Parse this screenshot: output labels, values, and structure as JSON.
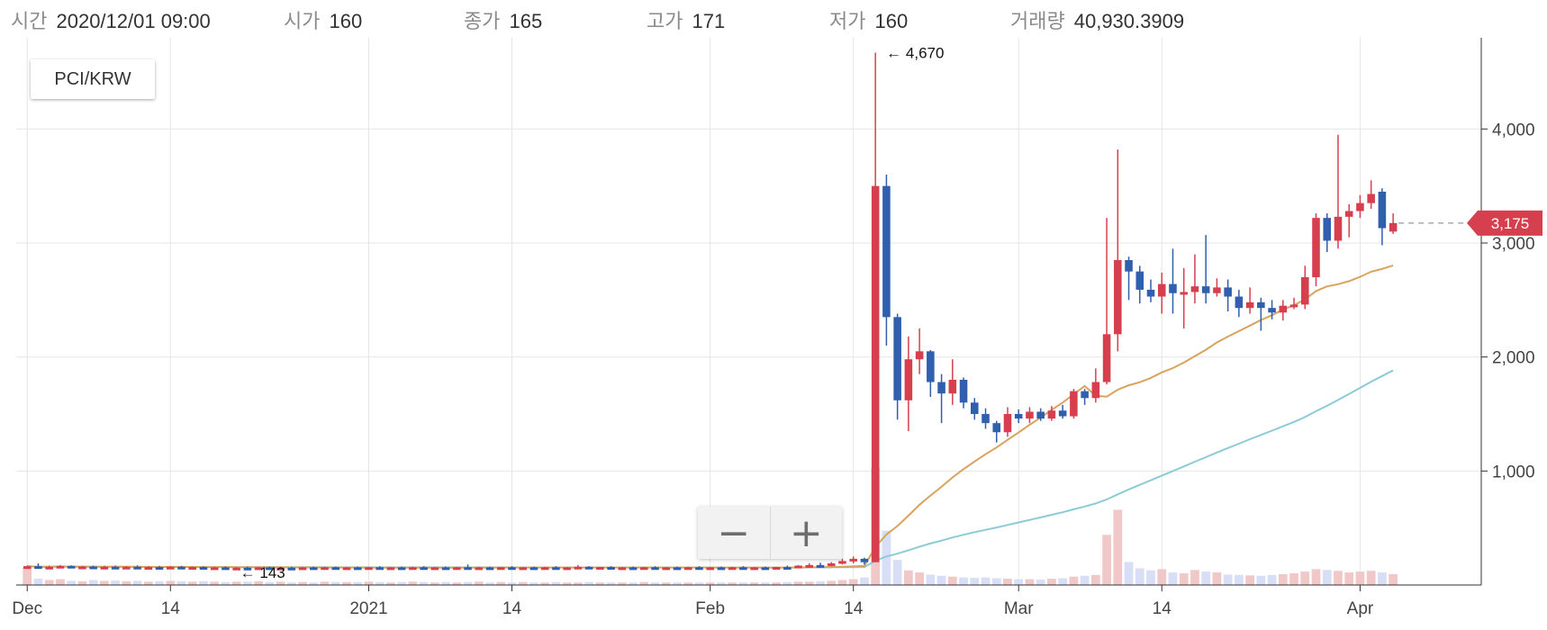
{
  "info": [
    {
      "key": "time",
      "label": "시간",
      "value": "2020/12/01 09:00"
    },
    {
      "key": "open",
      "label": "시가",
      "value": "160"
    },
    {
      "key": "close",
      "label": "종가",
      "value": "165"
    },
    {
      "key": "high",
      "label": "고가",
      "value": "171"
    },
    {
      "key": "low",
      "label": "저가",
      "value": "160"
    },
    {
      "key": "volume",
      "label": "거래량",
      "value": "40,930.3909"
    }
  ],
  "pair": "PCI/KRW",
  "zoom": {
    "out_label": "−",
    "in_label": "+"
  },
  "colors": {
    "up": "#d6404e",
    "down": "#2f5fad",
    "ma_short": "#d9a25e",
    "ma_long": "#8ccbd6",
    "vol_up": "#f1c8c8",
    "vol_down": "#d8def5",
    "grid": "#e6e6e6",
    "axis": "#333333"
  },
  "chart_data": {
    "type": "candlestick",
    "x_axis": {
      "type": "date",
      "range": [
        "2020-11-30",
        "2021-04-12"
      ],
      "tick_labels": [
        "Dec",
        "14",
        "2021",
        "14",
        "Feb",
        "14",
        "Mar",
        "14",
        "Apr"
      ]
    },
    "y_axis": {
      "range": [
        0,
        4800
      ],
      "ticks": [
        1000,
        2000,
        3000,
        4000
      ],
      "tick_labels": [
        "1,000",
        "2,000",
        "3,000",
        "4,000"
      ],
      "position": "right"
    },
    "grid": true,
    "annotations": {
      "max": {
        "label": "← 4,670",
        "value": 4670
      },
      "min": {
        "label": "← 143",
        "value": 143
      }
    },
    "last_price": {
      "label": "3,175",
      "value": 3175
    },
    "candles": [
      [
        "2020-12-01",
        160,
        171,
        160,
        165,
        41
      ],
      [
        "2020-12-02",
        165,
        190,
        150,
        155,
        15
      ],
      [
        "2020-12-03",
        155,
        170,
        150,
        160,
        12
      ],
      [
        "2020-12-04",
        160,
        175,
        152,
        168,
        14
      ],
      [
        "2020-12-05",
        168,
        172,
        150,
        155,
        10
      ],
      [
        "2020-12-06",
        155,
        168,
        150,
        162,
        9
      ],
      [
        "2020-12-07",
        162,
        170,
        150,
        155,
        12
      ],
      [
        "2020-12-08",
        155,
        168,
        150,
        160,
        10
      ],
      [
        "2020-12-09",
        160,
        170,
        148,
        152,
        11
      ],
      [
        "2020-12-10",
        152,
        165,
        148,
        160,
        9
      ],
      [
        "2020-12-11",
        160,
        172,
        150,
        155,
        10
      ],
      [
        "2020-12-12",
        155,
        165,
        148,
        158,
        8
      ],
      [
        "2020-12-13",
        158,
        168,
        150,
        152,
        9
      ],
      [
        "2020-12-14",
        152,
        165,
        148,
        160,
        10
      ],
      [
        "2020-12-15",
        160,
        168,
        148,
        150,
        9
      ],
      [
        "2020-12-16",
        150,
        162,
        145,
        158,
        8
      ],
      [
        "2020-12-17",
        158,
        165,
        145,
        150,
        9
      ],
      [
        "2020-12-18",
        150,
        160,
        145,
        155,
        8
      ],
      [
        "2020-12-19",
        155,
        162,
        145,
        148,
        7
      ],
      [
        "2020-12-20",
        148,
        158,
        143,
        152,
        8
      ],
      [
        "2020-12-21",
        152,
        160,
        145,
        150,
        8
      ],
      [
        "2020-12-22",
        150,
        158,
        143,
        155,
        9
      ],
      [
        "2020-12-23",
        155,
        162,
        145,
        148,
        7
      ],
      [
        "2020-12-24",
        148,
        158,
        143,
        152,
        8
      ],
      [
        "2020-12-25",
        152,
        160,
        145,
        150,
        6
      ],
      [
        "2020-12-26",
        150,
        158,
        145,
        155,
        7
      ],
      [
        "2020-12-27",
        155,
        162,
        148,
        150,
        6
      ],
      [
        "2020-12-28",
        150,
        160,
        145,
        156,
        8
      ],
      [
        "2020-12-29",
        156,
        162,
        148,
        150,
        7
      ],
      [
        "2020-12-30",
        150,
        158,
        145,
        155,
        7
      ],
      [
        "2020-12-31",
        155,
        162,
        148,
        152,
        7
      ],
      [
        "2021-01-01",
        152,
        160,
        145,
        156,
        8
      ],
      [
        "2021-01-02",
        156,
        165,
        148,
        150,
        7
      ],
      [
        "2021-01-03",
        150,
        158,
        145,
        155,
        6
      ],
      [
        "2021-01-04",
        155,
        162,
        148,
        150,
        7
      ],
      [
        "2021-01-05",
        150,
        160,
        145,
        156,
        8
      ],
      [
        "2021-01-06",
        156,
        165,
        148,
        150,
        7
      ],
      [
        "2021-01-07",
        150,
        158,
        145,
        155,
        6
      ],
      [
        "2021-01-08",
        155,
        162,
        148,
        150,
        7
      ],
      [
        "2021-01-09",
        150,
        160,
        145,
        156,
        6
      ],
      [
        "2021-01-10",
        156,
        180,
        148,
        150,
        7
      ],
      [
        "2021-01-11",
        150,
        160,
        145,
        155,
        8
      ],
      [
        "2021-01-12",
        155,
        162,
        148,
        150,
        6
      ],
      [
        "2021-01-13",
        150,
        158,
        145,
        156,
        7
      ],
      [
        "2021-01-14",
        156,
        165,
        148,
        150,
        6
      ],
      [
        "2021-01-15",
        150,
        158,
        145,
        155,
        7
      ],
      [
        "2021-01-16",
        155,
        162,
        148,
        150,
        6
      ],
      [
        "2021-01-17",
        150,
        160,
        145,
        156,
        6
      ],
      [
        "2021-01-18",
        156,
        165,
        148,
        150,
        7
      ],
      [
        "2021-01-19",
        150,
        158,
        145,
        155,
        6
      ],
      [
        "2021-01-20",
        155,
        175,
        148,
        160,
        6
      ],
      [
        "2021-01-21",
        160,
        165,
        148,
        152,
        7
      ],
      [
        "2021-01-22",
        152,
        160,
        145,
        158,
        6
      ],
      [
        "2021-01-23",
        158,
        165,
        148,
        150,
        6
      ],
      [
        "2021-01-24",
        150,
        158,
        145,
        155,
        6
      ],
      [
        "2021-01-25",
        155,
        162,
        148,
        150,
        6
      ],
      [
        "2021-01-26",
        150,
        160,
        145,
        156,
        7
      ],
      [
        "2021-01-27",
        156,
        165,
        148,
        150,
        6
      ],
      [
        "2021-01-28",
        150,
        158,
        145,
        155,
        6
      ],
      [
        "2021-01-29",
        155,
        162,
        148,
        150,
        6
      ],
      [
        "2021-01-30",
        150,
        160,
        145,
        156,
        6
      ],
      [
        "2021-01-31",
        156,
        165,
        148,
        150,
        6
      ],
      [
        "2021-02-01",
        150,
        158,
        145,
        155,
        6
      ],
      [
        "2021-02-02",
        155,
        162,
        148,
        150,
        6
      ],
      [
        "2021-02-03",
        150,
        160,
        145,
        156,
        6
      ],
      [
        "2021-02-04",
        156,
        165,
        148,
        150,
        6
      ],
      [
        "2021-02-05",
        150,
        158,
        145,
        155,
        6
      ],
      [
        "2021-02-06",
        155,
        162,
        148,
        150,
        6
      ],
      [
        "2021-02-07",
        150,
        160,
        145,
        158,
        6
      ],
      [
        "2021-02-08",
        158,
        170,
        150,
        155,
        7
      ],
      [
        "2021-02-09",
        155,
        175,
        150,
        170,
        8
      ],
      [
        "2021-02-10",
        170,
        190,
        160,
        175,
        8
      ],
      [
        "2021-02-11",
        175,
        195,
        165,
        170,
        9
      ],
      [
        "2021-02-12",
        170,
        200,
        165,
        190,
        10
      ],
      [
        "2021-02-13",
        190,
        230,
        180,
        210,
        12
      ],
      [
        "2021-02-14",
        210,
        250,
        190,
        230,
        14
      ],
      [
        "2021-02-15",
        230,
        240,
        180,
        200,
        18
      ],
      [
        "2021-02-16",
        200,
        4670,
        200,
        3500,
        280
      ],
      [
        "2021-02-17",
        3500,
        3600,
        2100,
        2350,
        130
      ],
      [
        "2021-02-18",
        2350,
        2380,
        1450,
        1620,
        60
      ],
      [
        "2021-02-19",
        1620,
        2180,
        1350,
        1980,
        35
      ],
      [
        "2021-02-20",
        1980,
        2250,
        1850,
        2050,
        30
      ],
      [
        "2021-02-21",
        2050,
        2060,
        1650,
        1780,
        25
      ],
      [
        "2021-02-22",
        1780,
        1850,
        1420,
        1680,
        22
      ],
      [
        "2021-02-23",
        1680,
        1980,
        1580,
        1800,
        20
      ],
      [
        "2021-02-24",
        1800,
        1820,
        1550,
        1600,
        18
      ],
      [
        "2021-02-25",
        1600,
        1640,
        1450,
        1500,
        17
      ],
      [
        "2021-02-26",
        1500,
        1550,
        1370,
        1420,
        18
      ],
      [
        "2021-02-27",
        1420,
        1440,
        1250,
        1340,
        16
      ],
      [
        "2021-02-28",
        1340,
        1560,
        1300,
        1500,
        15
      ],
      [
        "2021-03-01",
        1500,
        1540,
        1420,
        1460,
        14
      ],
      [
        "2021-03-02",
        1460,
        1560,
        1420,
        1520,
        14
      ],
      [
        "2021-03-03",
        1520,
        1550,
        1440,
        1460,
        13
      ],
      [
        "2021-03-04",
        1460,
        1570,
        1440,
        1530,
        15
      ],
      [
        "2021-03-05",
        1530,
        1580,
        1460,
        1480,
        16
      ],
      [
        "2021-03-06",
        1480,
        1720,
        1460,
        1700,
        20
      ],
      [
        "2021-03-07",
        1700,
        1720,
        1580,
        1640,
        22
      ],
      [
        "2021-03-08",
        1640,
        1900,
        1600,
        1780,
        24
      ],
      [
        "2021-03-09",
        1780,
        3220,
        1760,
        2200,
        120
      ],
      [
        "2021-03-10",
        2200,
        3820,
        2050,
        2850,
        180
      ],
      [
        "2021-03-11",
        2850,
        2880,
        2500,
        2750,
        55
      ],
      [
        "2021-03-12",
        2750,
        2800,
        2470,
        2590,
        40
      ],
      [
        "2021-03-13",
        2590,
        2680,
        2480,
        2530,
        35
      ],
      [
        "2021-03-14",
        2530,
        2740,
        2380,
        2640,
        38
      ],
      [
        "2021-03-15",
        2640,
        2950,
        2380,
        2560,
        30
      ],
      [
        "2021-03-16",
        2560,
        2780,
        2250,
        2570,
        28
      ],
      [
        "2021-03-17",
        2570,
        2900,
        2470,
        2620,
        36
      ],
      [
        "2021-03-18",
        2620,
        3070,
        2470,
        2560,
        32
      ],
      [
        "2021-03-19",
        2560,
        2690,
        2530,
        2610,
        30
      ],
      [
        "2021-03-20",
        2610,
        2680,
        2400,
        2530,
        25
      ],
      [
        "2021-03-21",
        2530,
        2590,
        2350,
        2430,
        24
      ],
      [
        "2021-03-22",
        2430,
        2610,
        2380,
        2480,
        23
      ],
      [
        "2021-03-23",
        2480,
        2520,
        2230,
        2430,
        22
      ],
      [
        "2021-03-24",
        2430,
        2500,
        2330,
        2390,
        24
      ],
      [
        "2021-03-25",
        2390,
        2500,
        2320,
        2450,
        26
      ],
      [
        "2021-03-26",
        2450,
        2520,
        2420,
        2460,
        28
      ],
      [
        "2021-03-27",
        2460,
        2800,
        2420,
        2700,
        32
      ],
      [
        "2021-03-28",
        2700,
        3260,
        2620,
        3220,
        38
      ],
      [
        "2021-03-29",
        3220,
        3260,
        2920,
        3020,
        36
      ],
      [
        "2021-03-30",
        3020,
        3950,
        2950,
        3230,
        34
      ],
      [
        "2021-03-31",
        3230,
        3340,
        3050,
        3280,
        30
      ],
      [
        "2021-04-01",
        3280,
        3420,
        3220,
        3350,
        32
      ],
      [
        "2021-04-02",
        3350,
        3550,
        3300,
        3430,
        34
      ],
      [
        "2021-04-03",
        3450,
        3480,
        2980,
        3130,
        30
      ],
      [
        "2021-04-04",
        3100,
        3260,
        3080,
        3175,
        26
      ]
    ]
  }
}
